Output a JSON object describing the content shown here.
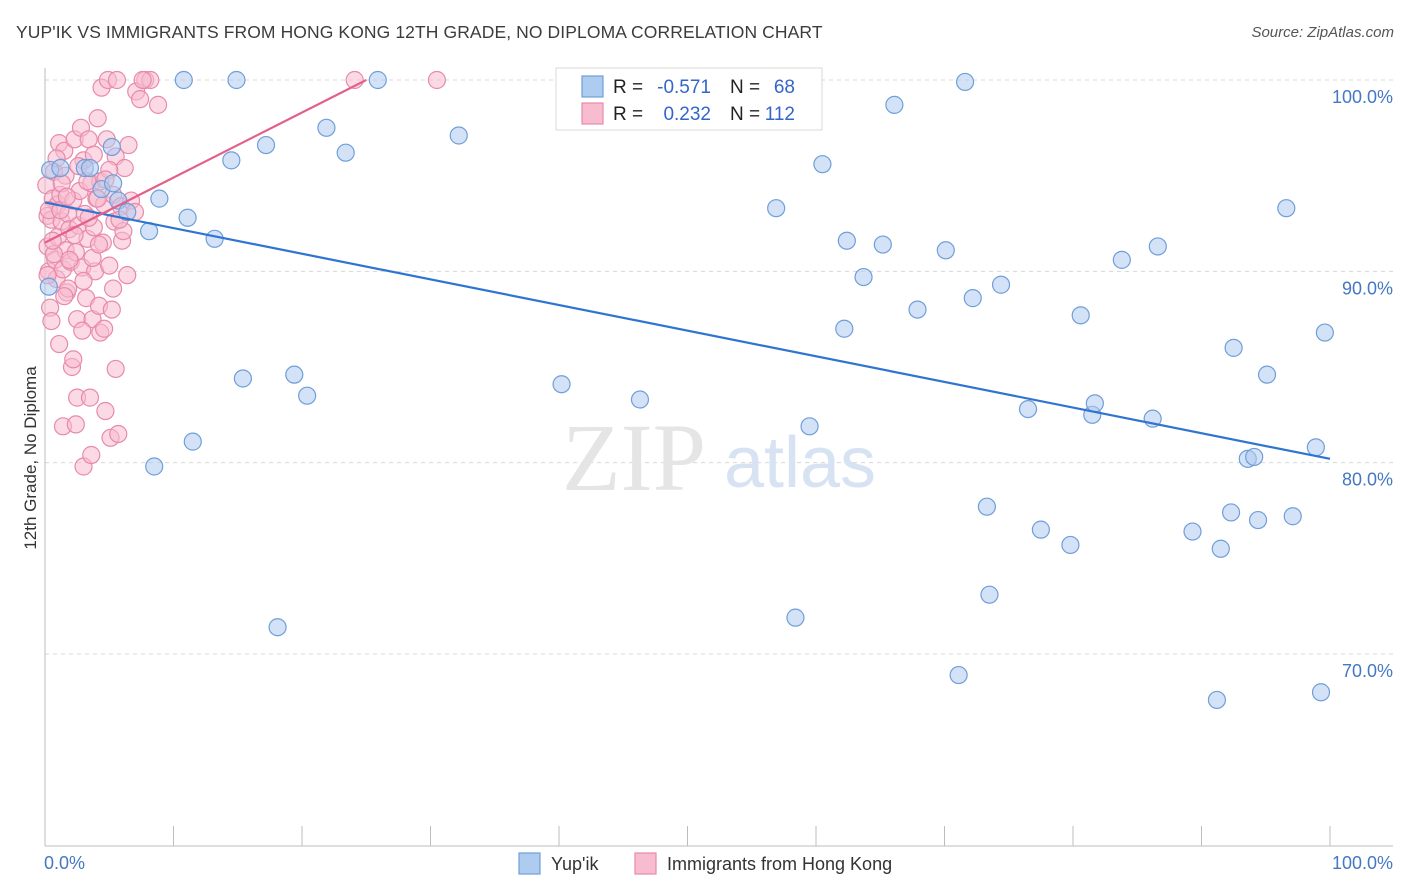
{
  "title": "YUP'IK VS IMMIGRANTS FROM HONG KONG 12TH GRADE, NO DIPLOMA CORRELATION CHART",
  "source": "Source: ZipAtlas.com",
  "watermark": {
    "zip": "ZIP",
    "atlas": "atlas"
  },
  "legend_top": {
    "rows": [
      {
        "r_label": "R =",
        "r_value": "-0.571",
        "n_label": "N =",
        "n_value": "68"
      },
      {
        "r_label": "R =",
        "r_value": "0.232",
        "n_label": "N =",
        "n_value": "112"
      }
    ]
  },
  "legend_bottom": [
    "Yup'ik",
    "Immigrants from Hong Kong"
  ],
  "colors": {
    "blue_fill": "#aecbf0",
    "blue_stroke": "#6f9fd8",
    "blue_line": "#2f74d0",
    "pink_fill": "#f7bcd0",
    "pink_stroke": "#e88aab",
    "pink_line": "#e2608a",
    "grid": "#d8d8d8",
    "tick_text": "#4477c4"
  },
  "chart_data": {
    "type": "scatter",
    "title": "YUP'IK VS IMMIGRANTS FROM HONG KONG 12TH GRADE, NO DIPLOMA CORRELATION CHART",
    "xlabel": "",
    "ylabel": "12th Grade, No Diploma",
    "xlim": [
      0,
      100
    ],
    "ylim": [
      60.5,
      101.5
    ],
    "x_tick_labels": [
      "0.0%",
      "100.0%"
    ],
    "y_ticks": [
      {
        "value": 100,
        "label": "100.0%"
      },
      {
        "value": 90,
        "label": "90.0%"
      },
      {
        "value": 80,
        "label": "80.0%"
      },
      {
        "value": 70,
        "label": "70.0%"
      }
    ],
    "grid": true,
    "series": [
      {
        "name": "Yup'ik",
        "color": "#aecbf0",
        "points": [
          [
            0.3,
            89.2
          ],
          [
            0.4,
            95.3
          ],
          [
            1.2,
            95.4
          ],
          [
            3.1,
            95.4
          ],
          [
            3.5,
            95.4
          ],
          [
            4.4,
            94.3
          ],
          [
            5.2,
            96.5
          ],
          [
            5.3,
            94.6
          ],
          [
            5.7,
            93.7
          ],
          [
            6.4,
            93.1
          ],
          [
            8.1,
            92.1
          ],
          [
            8.5,
            79.8
          ],
          [
            8.9,
            93.8
          ],
          [
            10.8,
            100
          ],
          [
            11.1,
            92.8
          ],
          [
            11.5,
            81.1
          ],
          [
            13.2,
            91.7
          ],
          [
            14.5,
            95.8
          ],
          [
            14.9,
            100
          ],
          [
            15.4,
            84.4
          ],
          [
            17.2,
            96.6
          ],
          [
            18.1,
            71.4
          ],
          [
            19.4,
            84.6
          ],
          [
            20.4,
            83.5
          ],
          [
            21.9,
            97.5
          ],
          [
            23.4,
            96.2
          ],
          [
            25.9,
            100
          ],
          [
            32.2,
            97.1
          ],
          [
            40.2,
            84.1
          ],
          [
            46.3,
            83.3
          ],
          [
            56.9,
            93.3
          ],
          [
            58.4,
            71.9
          ],
          [
            59.5,
            81.9
          ],
          [
            60.5,
            95.6
          ],
          [
            62.2,
            87.0
          ],
          [
            62.4,
            91.6
          ],
          [
            63.7,
            89.7
          ],
          [
            65.2,
            91.4
          ],
          [
            66.1,
            98.7
          ],
          [
            67.9,
            88.0
          ],
          [
            70.1,
            91.1
          ],
          [
            71.1,
            68.9
          ],
          [
            71.6,
            99.9
          ],
          [
            72.2,
            88.6
          ],
          [
            73.3,
            77.7
          ],
          [
            73.5,
            73.1
          ],
          [
            74.4,
            89.3
          ],
          [
            76.5,
            82.8
          ],
          [
            77.5,
            76.5
          ],
          [
            79.8,
            75.7
          ],
          [
            80.6,
            87.7
          ],
          [
            81.5,
            82.5
          ],
          [
            81.7,
            83.1
          ],
          [
            83.8,
            90.6
          ],
          [
            86.2,
            82.3
          ],
          [
            86.6,
            91.3
          ],
          [
            89.3,
            76.4
          ],
          [
            91.2,
            67.6
          ],
          [
            91.5,
            75.5
          ],
          [
            92.3,
            77.4
          ],
          [
            92.5,
            86.0
          ],
          [
            93.6,
            80.2
          ],
          [
            94.1,
            80.3
          ],
          [
            94.4,
            77.0
          ],
          [
            95.1,
            84.6
          ],
          [
            96.6,
            93.3
          ],
          [
            97.1,
            77.2
          ],
          [
            98.9,
            80.8
          ],
          [
            99.3,
            68.0
          ],
          [
            99.6,
            86.8
          ]
        ],
        "trend": {
          "x": [
            0,
            100
          ],
          "y": [
            93.6,
            80.2
          ]
        }
      },
      {
        "name": "Immigrants from Hong Kong",
        "color": "#f7bcd0",
        "points": [
          [
            0.1,
            94.5
          ],
          [
            0.2,
            92.9
          ],
          [
            0.2,
            91.3
          ],
          [
            0.3,
            90.0
          ],
          [
            0.4,
            88.1
          ],
          [
            0.5,
            87.4
          ],
          [
            0.5,
            92.7
          ],
          [
            0.6,
            93.8
          ],
          [
            0.7,
            95.2
          ],
          [
            0.8,
            90.6
          ],
          [
            0.9,
            89.6
          ],
          [
            1.0,
            93.5
          ],
          [
            1.0,
            91.8
          ],
          [
            1.1,
            96.7
          ],
          [
            1.2,
            94.0
          ],
          [
            1.3,
            92.6
          ],
          [
            1.4,
            81.9
          ],
          [
            1.4,
            90.1
          ],
          [
            1.5,
            96.3
          ],
          [
            1.6,
            95.0
          ],
          [
            1.6,
            91.1
          ],
          [
            1.7,
            88.9
          ],
          [
            1.8,
            93.0
          ],
          [
            1.9,
            92.2
          ],
          [
            2.0,
            90.5
          ],
          [
            2.1,
            85.0
          ],
          [
            2.2,
            85.4
          ],
          [
            2.2,
            93.7
          ],
          [
            2.3,
            96.9
          ],
          [
            2.4,
            91.0
          ],
          [
            2.5,
            83.4
          ],
          [
            2.5,
            87.5
          ],
          [
            2.6,
            92.4
          ],
          [
            2.7,
            94.2
          ],
          [
            2.8,
            97.5
          ],
          [
            2.9,
            90.2
          ],
          [
            3.0,
            79.8
          ],
          [
            3.0,
            95.8
          ],
          [
            3.1,
            93.0
          ],
          [
            3.2,
            88.6
          ],
          [
            3.3,
            91.7
          ],
          [
            3.4,
            96.9
          ],
          [
            3.5,
            83.4
          ],
          [
            3.6,
            94.6
          ],
          [
            3.6,
            80.4
          ],
          [
            3.7,
            87.5
          ],
          [
            3.8,
            92.3
          ],
          [
            3.9,
            90.0
          ],
          [
            4.0,
            93.8
          ],
          [
            4.1,
            98.0
          ],
          [
            4.2,
            88.2
          ],
          [
            4.3,
            86.8
          ],
          [
            4.3,
            94.7
          ],
          [
            4.4,
            99.6
          ],
          [
            4.5,
            91.5
          ],
          [
            4.6,
            93.5
          ],
          [
            4.7,
            82.7
          ],
          [
            4.8,
            96.9
          ],
          [
            4.9,
            100
          ],
          [
            5.0,
            90.3
          ],
          [
            5.1,
            81.3
          ],
          [
            5.2,
            88.0
          ],
          [
            5.3,
            94.0
          ],
          [
            5.4,
            92.6
          ],
          [
            5.5,
            96.0
          ],
          [
            5.6,
            100
          ],
          [
            5.7,
            81.5
          ],
          [
            5.9,
            93.4
          ],
          [
            6.0,
            91.6
          ],
          [
            6.2,
            95.4
          ],
          [
            0.3,
            93.2
          ],
          [
            0.7,
            90.9
          ],
          [
            1.1,
            86.2
          ],
          [
            1.3,
            94.6
          ],
          [
            1.8,
            89.1
          ],
          [
            2.4,
            82.0
          ],
          [
            2.9,
            86.9
          ],
          [
            3.3,
            94.7
          ],
          [
            3.7,
            90.7
          ],
          [
            4.1,
            93.8
          ],
          [
            4.6,
            87.0
          ],
          [
            5.0,
            95.3
          ],
          [
            5.5,
            84.9
          ],
          [
            6.1,
            92.1
          ],
          [
            6.4,
            89.8
          ],
          [
            6.7,
            93.7
          ],
          [
            7.1,
            99.4
          ],
          [
            7.4,
            99.0
          ],
          [
            7.8,
            100
          ],
          [
            8.2,
            100
          ],
          [
            0.2,
            89.8
          ],
          [
            0.6,
            91.6
          ],
          [
            0.9,
            95.9
          ],
          [
            1.2,
            93.2
          ],
          [
            1.5,
            88.7
          ],
          [
            1.9,
            90.6
          ],
          [
            2.3,
            91.9
          ],
          [
            2.6,
            95.5
          ],
          [
            3.0,
            89.5
          ],
          [
            3.4,
            92.8
          ],
          [
            3.8,
            96.1
          ],
          [
            4.2,
            91.4
          ],
          [
            4.7,
            94.8
          ],
          [
            5.3,
            89.1
          ],
          [
            5.8,
            92.7
          ],
          [
            6.5,
            96.6
          ],
          [
            7.0,
            93.1
          ],
          [
            7.6,
            100
          ],
          [
            8.8,
            98.7
          ],
          [
            24.1,
            100
          ],
          [
            30.5,
            100
          ],
          [
            1.7,
            93.9
          ]
        ],
        "trend": {
          "x": [
            0,
            25
          ],
          "y": [
            91.5,
            100
          ]
        }
      }
    ]
  }
}
